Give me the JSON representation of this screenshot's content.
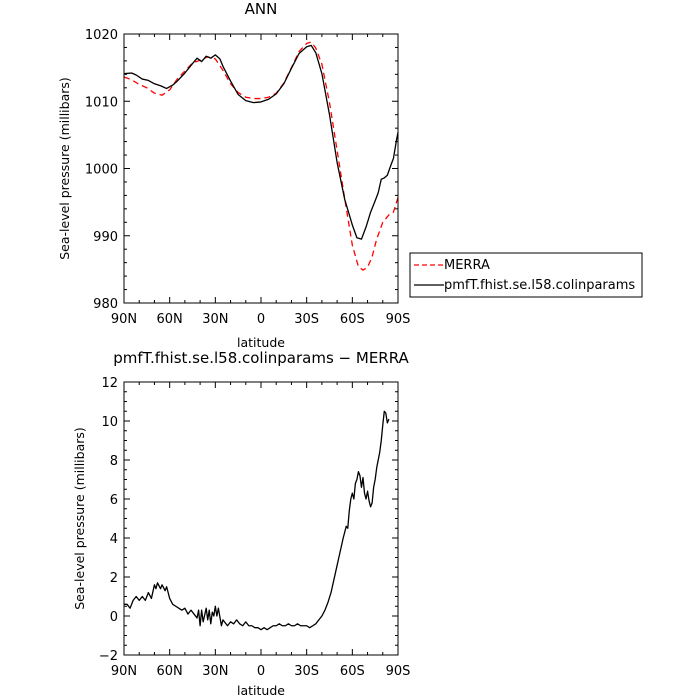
{
  "chart_data": [
    {
      "type": "line",
      "title": "ANN",
      "xlabel": "latitude",
      "ylabel": "Sea-level pressure (millibars)",
      "xlim": [
        90,
        -90
      ],
      "ylim": [
        980,
        1020
      ],
      "xticks": [
        90,
        60,
        30,
        0,
        -30,
        -60,
        -90
      ],
      "xtick_labels": [
        "90N",
        "60N",
        "30N",
        "0",
        "30S",
        "60S",
        "90S"
      ],
      "yticks": [
        980,
        990,
        1000,
        1010,
        1020
      ],
      "ytick_labels": [
        "980",
        "990",
        "1000",
        "1010",
        "1020"
      ],
      "legend_position": "outside-right",
      "series": [
        {
          "name": "MERRA",
          "color": "#ff0000",
          "dashed": true,
          "points": [
            [
              90,
              1013.6
            ],
            [
              85,
              1013.2
            ],
            [
              80,
              1012.5
            ],
            [
              75,
              1012.0
            ],
            [
              70,
              1011.2
            ],
            [
              65,
              1010.9
            ],
            [
              60,
              1011.7
            ],
            [
              55,
              1013.3
            ],
            [
              50,
              1014.5
            ],
            [
              45,
              1015.7
            ],
            [
              40,
              1016.1
            ],
            [
              35,
              1016.6
            ],
            [
              30,
              1016.3
            ],
            [
              25,
              1014.6
            ],
            [
              20,
              1012.6
            ],
            [
              15,
              1011.3
            ],
            [
              10,
              1010.6
            ],
            [
              5,
              1010.4
            ],
            [
              0,
              1010.4
            ],
            [
              -5,
              1010.6
            ],
            [
              -10,
              1011.2
            ],
            [
              -15,
              1012.7
            ],
            [
              -20,
              1015.0
            ],
            [
              -25,
              1017.4
            ],
            [
              -30,
              1018.6
            ],
            [
              -33,
              1018.8
            ],
            [
              -36,
              1017.9
            ],
            [
              -40,
              1015.5
            ],
            [
              -45,
              1009.8
            ],
            [
              -50,
              1002.7
            ],
            [
              -55,
              995.5
            ],
            [
              -60,
              988.6
            ],
            [
              -64,
              985.4
            ],
            [
              -67,
              984.9
            ],
            [
              -70,
              985.3
            ],
            [
              -73,
              986.9
            ],
            [
              -76,
              989.5
            ],
            [
              -80,
              992.0
            ],
            [
              -84,
              993.1
            ],
            [
              -87,
              993.5
            ],
            [
              -90,
              995.7
            ]
          ]
        },
        {
          "name": "pmfT.fhist.se.l58.colinparams",
          "color": "#000000",
          "dashed": false,
          "points": [
            [
              90,
              1014.1
            ],
            [
              85,
              1014.2
            ],
            [
              82,
              1013.9
            ],
            [
              78,
              1013.3
            ],
            [
              74,
              1013.1
            ],
            [
              70,
              1012.6
            ],
            [
              66,
              1012.3
            ],
            [
              62,
              1011.9
            ],
            [
              58,
              1012.4
            ],
            [
              55,
              1013.0
            ],
            [
              50,
              1014.2
            ],
            [
              45,
              1015.6
            ],
            [
              42,
              1016.4
            ],
            [
              39,
              1015.9
            ],
            [
              36,
              1016.7
            ],
            [
              33,
              1016.4
            ],
            [
              30,
              1016.9
            ],
            [
              27,
              1016.3
            ],
            [
              25,
              1015.2
            ],
            [
              20,
              1013.0
            ],
            [
              15,
              1011.0
            ],
            [
              10,
              1010.1
            ],
            [
              5,
              1009.8
            ],
            [
              0,
              1009.9
            ],
            [
              -5,
              1010.3
            ],
            [
              -10,
              1011.1
            ],
            [
              -15,
              1012.6
            ],
            [
              -20,
              1014.9
            ],
            [
              -25,
              1017.1
            ],
            [
              -30,
              1018.1
            ],
            [
              -33,
              1018.3
            ],
            [
              -36,
              1017.2
            ],
            [
              -40,
              1014.1
            ],
            [
              -45,
              1008.0
            ],
            [
              -50,
              1000.9
            ],
            [
              -55,
              995.4
            ],
            [
              -60,
              991.6
            ],
            [
              -63,
              989.7
            ],
            [
              -66,
              989.5
            ],
            [
              -69,
              991.3
            ],
            [
              -72,
              993.5
            ],
            [
              -75,
              995.2
            ],
            [
              -77,
              996.4
            ],
            [
              -79,
              998.4
            ],
            [
              -81,
              998.6
            ],
            [
              -83,
              999.0
            ],
            [
              -85,
              1000.3
            ],
            [
              -87,
              1001.5
            ],
            [
              -89,
              1004.2
            ],
            [
              -90,
              1005.4
            ]
          ]
        }
      ]
    },
    {
      "type": "line",
      "title": "pmfT.fhist.se.l58.colinparams − MERRA",
      "xlabel": "latitude",
      "ylabel": "Sea-level pressure (millibars)",
      "xlim": [
        90,
        -90
      ],
      "ylim": [
        -2,
        12
      ],
      "xticks": [
        90,
        60,
        30,
        0,
        -30,
        -60,
        -90
      ],
      "xtick_labels": [
        "90N",
        "60N",
        "30N",
        "0",
        "30S",
        "60S",
        "90S"
      ],
      "yticks": [
        -2,
        0,
        2,
        4,
        6,
        8,
        10,
        12
      ],
      "ytick_labels": [
        "−2",
        "0",
        "2",
        "4",
        "6",
        "8",
        "10",
        "12"
      ],
      "series": [
        {
          "color": "#000000",
          "dashed": false,
          "points": [
            [
              90,
              0.6
            ],
            [
              88,
              0.6
            ],
            [
              86,
              0.4
            ],
            [
              84,
              0.8
            ],
            [
              82,
              1.0
            ],
            [
              80,
              0.8
            ],
            [
              78,
              1.0
            ],
            [
              76,
              0.8
            ],
            [
              74,
              1.2
            ],
            [
              72,
              0.9
            ],
            [
              70,
              1.6
            ],
            [
              69,
              1.4
            ],
            [
              68,
              1.7
            ],
            [
              66,
              1.4
            ],
            [
              65,
              1.6
            ],
            [
              63,
              1.3
            ],
            [
              62,
              1.5
            ],
            [
              60,
              0.9
            ],
            [
              58,
              0.6
            ],
            [
              56,
              0.5
            ],
            [
              54,
              0.4
            ],
            [
              52,
              0.3
            ],
            [
              50,
              0.4
            ],
            [
              48,
              0.1
            ],
            [
              46,
              0.3
            ],
            [
              44,
              0.1
            ],
            [
              42,
              -0.1
            ],
            [
              41,
              0.3
            ],
            [
              40,
              -0.5
            ],
            [
              39,
              0.3
            ],
            [
              38,
              -0.3
            ],
            [
              36,
              0.4
            ],
            [
              35,
              -0.2
            ],
            [
              34,
              0.3
            ],
            [
              33,
              -0.4
            ],
            [
              32,
              0.2
            ],
            [
              31,
              0.0
            ],
            [
              30,
              0.5
            ],
            [
              29,
              0.0
            ],
            [
              28,
              0.4
            ],
            [
              26,
              -0.5
            ],
            [
              25,
              -0.2
            ],
            [
              24,
              -0.3
            ],
            [
              22,
              -0.5
            ],
            [
              20,
              -0.3
            ],
            [
              18,
              -0.4
            ],
            [
              16,
              -0.2
            ],
            [
              14,
              -0.4
            ],
            [
              12,
              -0.5
            ],
            [
              10,
              -0.3
            ],
            [
              8,
              -0.5
            ],
            [
              6,
              -0.5
            ],
            [
              4,
              -0.6
            ],
            [
              2,
              -0.6
            ],
            [
              0,
              -0.7
            ],
            [
              -2,
              -0.6
            ],
            [
              -4,
              -0.7
            ],
            [
              -6,
              -0.6
            ],
            [
              -8,
              -0.5
            ],
            [
              -10,
              -0.5
            ],
            [
              -12,
              -0.4
            ],
            [
              -14,
              -0.5
            ],
            [
              -16,
              -0.5
            ],
            [
              -18,
              -0.4
            ],
            [
              -20,
              -0.5
            ],
            [
              -22,
              -0.5
            ],
            [
              -24,
              -0.4
            ],
            [
              -26,
              -0.5
            ],
            [
              -28,
              -0.5
            ],
            [
              -30,
              -0.5
            ],
            [
              -32,
              -0.6
            ],
            [
              -34,
              -0.5
            ],
            [
              -36,
              -0.4
            ],
            [
              -38,
              -0.2
            ],
            [
              -40,
              0.0
            ],
            [
              -42,
              0.3
            ],
            [
              -44,
              0.7
            ],
            [
              -46,
              1.2
            ],
            [
              -48,
              1.9
            ],
            [
              -50,
              2.6
            ],
            [
              -52,
              3.3
            ],
            [
              -54,
              4.0
            ],
            [
              -56,
              4.6
            ],
            [
              -57,
              4.5
            ],
            [
              -58,
              5.4
            ],
            [
              -59,
              6.0
            ],
            [
              -60,
              6.3
            ],
            [
              -61,
              6.0
            ],
            [
              -62,
              6.8
            ],
            [
              -63,
              7.0
            ],
            [
              -64,
              7.4
            ],
            [
              -65,
              7.2
            ],
            [
              -66,
              6.6
            ],
            [
              -67,
              7.1
            ],
            [
              -68,
              6.3
            ],
            [
              -69,
              6.0
            ],
            [
              -70,
              6.4
            ],
            [
              -71,
              5.9
            ],
            [
              -72,
              5.6
            ],
            [
              -73,
              5.8
            ],
            [
              -74,
              6.6
            ],
            [
              -75,
              7.0
            ],
            [
              -76,
              7.6
            ],
            [
              -77,
              8.0
            ],
            [
              -78,
              8.4
            ],
            [
              -79,
              9.0
            ],
            [
              -80,
              9.8
            ],
            [
              -81,
              10.5
            ],
            [
              -82,
              10.4
            ],
            [
              -83,
              9.9
            ],
            [
              -84,
              10.1
            ]
          ]
        }
      ]
    }
  ]
}
